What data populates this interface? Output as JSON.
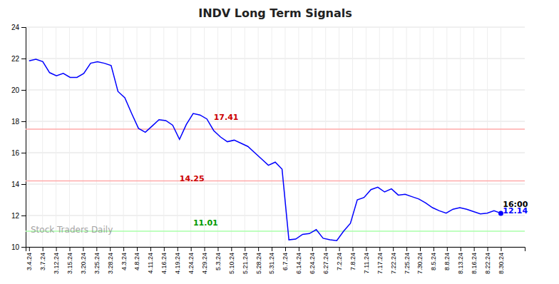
{
  "chart_data": {
    "type": "line",
    "title": "INDV Long Term Signals",
    "watermark": "Stock Traders Daily",
    "color": "blue",
    "values": [
      21.85,
      21.95,
      21.8,
      21.1,
      20.9,
      21.05,
      20.8,
      20.8,
      21.05,
      21.7,
      21.8,
      21.7,
      21.55,
      19.9,
      19.5,
      18.5,
      17.55,
      17.3,
      17.7,
      18.1,
      18.05,
      17.75,
      16.85,
      17.8,
      18.5,
      18.4,
      18.15,
      17.41,
      17.0,
      16.7,
      16.8,
      16.6,
      16.4,
      16.0,
      15.6,
      15.2,
      15.4,
      14.95,
      10.45,
      10.5,
      10.8,
      10.85,
      11.1,
      10.55,
      10.45,
      10.4,
      11.0,
      11.5,
      13.0,
      13.15,
      13.65,
      13.8,
      13.5,
      13.7,
      13.3,
      13.35,
      13.2,
      13.05,
      12.8,
      12.5,
      12.3,
      12.15,
      12.4,
      12.5,
      12.4,
      12.25,
      12.1,
      12.15,
      12.3,
      12.14
    ],
    "hlines": [
      {
        "value": 17.5,
        "color": "#ffaaaa"
      },
      {
        "value": 14.2,
        "color": "#ffaaaa"
      },
      {
        "value": 11.0,
        "color": "#aaffaa"
      }
    ],
    "annotations": [
      {
        "text": "17.41",
        "x": 27,
        "y": 18.1,
        "color": "#cc0000"
      },
      {
        "text": "14.25",
        "x": 22,
        "y": 14.2,
        "color": "#cc0000"
      },
      {
        "text": "11.01",
        "x": 24,
        "y": 11.35,
        "color": "#009900"
      },
      {
        "text": "16:00",
        "x": 69.3,
        "y": 12.54,
        "color": "black"
      },
      {
        "text": "12.14",
        "x": 69.3,
        "y": 12.14,
        "color": "blue"
      }
    ],
    "xlim": [
      -0.5,
      72.5
    ],
    "xticks": [
      {
        "value": 0,
        "label": "3.4.24"
      },
      {
        "value": 1.9714285714,
        "label": "3.7.24"
      },
      {
        "value": 3.9428571429,
        "label": "3.12.24"
      },
      {
        "value": 5.9142857143,
        "label": "3.15.24"
      },
      {
        "value": 7.8857142857,
        "label": "3.20.24"
      },
      {
        "value": 9.8571428571,
        "label": "3.25.24"
      },
      {
        "value": 11.8285714286,
        "label": "3.28.24"
      },
      {
        "value": 13.8,
        "label": "4.3.24"
      },
      {
        "value": 15.7714285714,
        "label": "4.8.24"
      },
      {
        "value": 17.7428571429,
        "label": "4.11.24"
      },
      {
        "value": 19.7142857143,
        "label": "4.16.24"
      },
      {
        "value": 21.6857142857,
        "label": "4.19.24"
      },
      {
        "value": 23.6571428571,
        "label": "4.24.24"
      },
      {
        "value": 25.6285714286,
        "label": "4.29.24"
      },
      {
        "value": 27.6,
        "label": "5.3.24"
      },
      {
        "value": 29.5714285714,
        "label": "5.10.24"
      },
      {
        "value": 31.5428571429,
        "label": "5.21.24"
      },
      {
        "value": 33.5142857143,
        "label": "5.28.24"
      },
      {
        "value": 35.4857142857,
        "label": "5.31.24"
      },
      {
        "value": 37.4571428571,
        "label": "6.7.24"
      },
      {
        "value": 39.4285714286,
        "label": "6.14.24"
      },
      {
        "value": 41.4,
        "label": "6.24.24"
      },
      {
        "value": 43.3714285714,
        "label": "6.27.24"
      },
      {
        "value": 45.3428571429,
        "label": "7.2.24"
      },
      {
        "value": 47.3142857143,
        "label": "7.8.24"
      },
      {
        "value": 49.2857142857,
        "label": "7.11.24"
      },
      {
        "value": 51.2571428571,
        "label": "7.17.24"
      },
      {
        "value": 53.2285714286,
        "label": "7.22.24"
      },
      {
        "value": 55.2,
        "label": "7.25.24"
      },
      {
        "value": 57.1714285714,
        "label": "7.30.24"
      },
      {
        "value": 59.1428571429,
        "label": "8.5.24"
      },
      {
        "value": 61.1142857143,
        "label": "8.8.24"
      },
      {
        "value": 63.0857142857,
        "label": "8.13.24"
      },
      {
        "value": 65.0571428571,
        "label": "8.16.24"
      },
      {
        "value": 67.0285714286,
        "label": "8.22.24"
      },
      {
        "value": 69,
        "label": "8.30.24"
      }
    ],
    "ylim": [
      10,
      24
    ],
    "yticks": [
      10,
      12,
      14,
      16,
      18,
      20,
      22,
      24
    ],
    "grid": true
  }
}
